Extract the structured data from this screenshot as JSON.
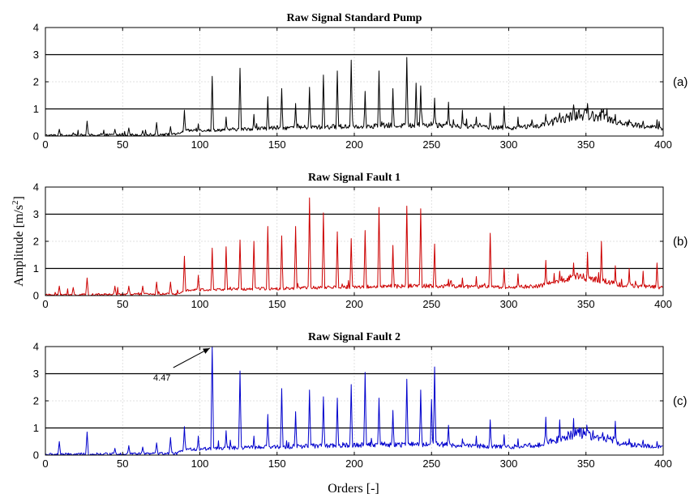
{
  "figure": {
    "ylabel": "Amplitude [m/s",
    "ylabel_sup": "2",
    "ylabel_end": "]",
    "xlabel": "Orders [-]"
  },
  "chart_data": [
    {
      "type": "line",
      "title": "Raw Signal Standard Pump",
      "panel_label": "(a)",
      "color": "#000000",
      "xlim": [
        0,
        400
      ],
      "ylim": [
        0,
        4
      ],
      "xticks": [
        0,
        50,
        100,
        150,
        200,
        250,
        300,
        350,
        400
      ],
      "yticks": [
        0,
        1,
        2,
        3,
        4
      ],
      "grid": true,
      "reference_lines": [
        1,
        3
      ],
      "baseline": [
        [
          0,
          0.02
        ],
        [
          40,
          0.04
        ],
        [
          85,
          0.06
        ],
        [
          90,
          0.2
        ],
        [
          110,
          0.22
        ],
        [
          150,
          0.3
        ],
        [
          200,
          0.36
        ],
        [
          250,
          0.42
        ],
        [
          300,
          0.3
        ],
        [
          320,
          0.38
        ],
        [
          345,
          0.8
        ],
        [
          360,
          0.72
        ],
        [
          375,
          0.45
        ],
        [
          400,
          0.28
        ]
      ],
      "noise": 0.12,
      "peaks": [
        [
          9,
          0.25
        ],
        [
          18,
          0.12
        ],
        [
          27,
          0.55
        ],
        [
          36,
          0.1
        ],
        [
          45,
          0.25
        ],
        [
          54,
          0.3
        ],
        [
          63,
          0.2
        ],
        [
          72,
          0.5
        ],
        [
          81,
          0.35
        ],
        [
          90,
          0.95
        ],
        [
          99,
          0.45
        ],
        [
          108,
          2.2
        ],
        [
          117,
          0.7
        ],
        [
          126,
          2.5
        ],
        [
          135,
          0.8
        ],
        [
          144,
          1.45
        ],
        [
          153,
          1.75
        ],
        [
          162,
          1.2
        ],
        [
          171,
          1.8
        ],
        [
          180,
          2.25
        ],
        [
          189,
          2.4
        ],
        [
          198,
          2.8
        ],
        [
          207,
          1.65
        ],
        [
          216,
          2.4
        ],
        [
          225,
          1.75
        ],
        [
          234,
          2.9
        ],
        [
          240,
          1.95
        ],
        [
          243,
          1.85
        ],
        [
          252,
          1.4
        ],
        [
          261,
          1.25
        ],
        [
          270,
          0.95
        ],
        [
          279,
          0.7
        ],
        [
          288,
          0.85
        ],
        [
          297,
          1.1
        ],
        [
          306,
          0.7
        ],
        [
          315,
          0.6
        ],
        [
          324,
          0.75
        ],
        [
          333,
          0.85
        ],
        [
          342,
          1.15
        ],
        [
          351,
          1.2
        ],
        [
          360,
          1.0
        ],
        [
          369,
          0.8
        ],
        [
          378,
          0.6
        ],
        [
          387,
          0.55
        ],
        [
          396,
          0.6
        ]
      ]
    },
    {
      "type": "line",
      "title": "Raw Signal Fault 1",
      "panel_label": "(b)",
      "color": "#cc0000",
      "xlim": [
        0,
        400
      ],
      "ylim": [
        0,
        4
      ],
      "xticks": [
        0,
        50,
        100,
        150,
        200,
        250,
        300,
        350,
        400
      ],
      "yticks": [
        0,
        1,
        2,
        3,
        4
      ],
      "grid": true,
      "reference_lines": [
        1,
        3
      ],
      "baseline": [
        [
          0,
          0.02
        ],
        [
          40,
          0.04
        ],
        [
          85,
          0.06
        ],
        [
          90,
          0.2
        ],
        [
          110,
          0.22
        ],
        [
          150,
          0.26
        ],
        [
          200,
          0.32
        ],
        [
          250,
          0.36
        ],
        [
          300,
          0.3
        ],
        [
          320,
          0.35
        ],
        [
          345,
          0.72
        ],
        [
          360,
          0.55
        ],
        [
          375,
          0.38
        ],
        [
          400,
          0.3
        ]
      ],
      "noise": 0.1,
      "peaks": [
        [
          9,
          0.35
        ],
        [
          18,
          0.3
        ],
        [
          27,
          0.65
        ],
        [
          45,
          0.35
        ],
        [
          54,
          0.35
        ],
        [
          63,
          0.35
        ],
        [
          72,
          0.5
        ],
        [
          81,
          0.5
        ],
        [
          90,
          1.45
        ],
        [
          99,
          0.75
        ],
        [
          108,
          1.75
        ],
        [
          117,
          1.8
        ],
        [
          126,
          2.05
        ],
        [
          135,
          2.0
        ],
        [
          144,
          2.55
        ],
        [
          153,
          2.2
        ],
        [
          162,
          2.55
        ],
        [
          171,
          3.6
        ],
        [
          180,
          3.05
        ],
        [
          189,
          2.35
        ],
        [
          198,
          2.1
        ],
        [
          207,
          2.4
        ],
        [
          216,
          3.25
        ],
        [
          225,
          1.85
        ],
        [
          234,
          3.3
        ],
        [
          243,
          3.2
        ],
        [
          252,
          1.9
        ],
        [
          261,
          0.6
        ],
        [
          270,
          0.65
        ],
        [
          279,
          0.7
        ],
        [
          288,
          2.3
        ],
        [
          297,
          1.0
        ],
        [
          306,
          0.8
        ],
        [
          324,
          1.3
        ],
        [
          333,
          0.9
        ],
        [
          342,
          1.2
        ],
        [
          351,
          1.6
        ],
        [
          360,
          2.0
        ],
        [
          369,
          1.1
        ],
        [
          378,
          1.0
        ],
        [
          387,
          0.9
        ],
        [
          396,
          1.2
        ]
      ]
    },
    {
      "type": "line",
      "title": "Raw Signal Fault 2",
      "panel_label": "(c)",
      "color": "#0000cc",
      "xlim": [
        0,
        400
      ],
      "ylim": [
        0,
        4
      ],
      "xticks": [
        0,
        50,
        100,
        150,
        200,
        250,
        300,
        350,
        400
      ],
      "yticks": [
        0,
        1,
        2,
        3,
        4
      ],
      "grid": true,
      "reference_lines": [
        1,
        3
      ],
      "baseline": [
        [
          0,
          0.02
        ],
        [
          40,
          0.04
        ],
        [
          85,
          0.06
        ],
        [
          90,
          0.2
        ],
        [
          110,
          0.25
        ],
        [
          150,
          0.3
        ],
        [
          200,
          0.38
        ],
        [
          250,
          0.4
        ],
        [
          300,
          0.3
        ],
        [
          320,
          0.38
        ],
        [
          345,
          0.82
        ],
        [
          360,
          0.7
        ],
        [
          375,
          0.4
        ],
        [
          400,
          0.28
        ]
      ],
      "noise": 0.12,
      "peaks": [
        [
          9,
          0.5
        ],
        [
          27,
          0.85
        ],
        [
          45,
          0.25
        ],
        [
          54,
          0.35
        ],
        [
          63,
          0.3
        ],
        [
          72,
          0.45
        ],
        [
          81,
          0.65
        ],
        [
          90,
          1.05
        ],
        [
          99,
          0.7
        ],
        [
          108,
          4.47
        ],
        [
          117,
          0.9
        ],
        [
          126,
          3.1
        ],
        [
          135,
          0.7
        ],
        [
          144,
          1.5
        ],
        [
          153,
          2.45
        ],
        [
          162,
          1.6
        ],
        [
          171,
          2.4
        ],
        [
          180,
          2.15
        ],
        [
          189,
          2.1
        ],
        [
          198,
          2.6
        ],
        [
          207,
          3.05
        ],
        [
          216,
          2.1
        ],
        [
          225,
          1.65
        ],
        [
          234,
          2.8
        ],
        [
          243,
          2.4
        ],
        [
          250,
          2.05
        ],
        [
          252,
          3.25
        ],
        [
          261,
          1.1
        ],
        [
          270,
          0.6
        ],
        [
          279,
          0.7
        ],
        [
          288,
          1.3
        ],
        [
          297,
          0.75
        ],
        [
          306,
          0.6
        ],
        [
          324,
          1.4
        ],
        [
          333,
          1.3
        ],
        [
          342,
          1.35
        ],
        [
          351,
          0.9
        ],
        [
          360,
          0.65
        ],
        [
          369,
          1.25
        ],
        [
          378,
          0.6
        ],
        [
          387,
          0.55
        ],
        [
          396,
          0.5
        ]
      ],
      "annotation": {
        "text": "4.47",
        "x": 108,
        "y": 4.47
      }
    }
  ]
}
